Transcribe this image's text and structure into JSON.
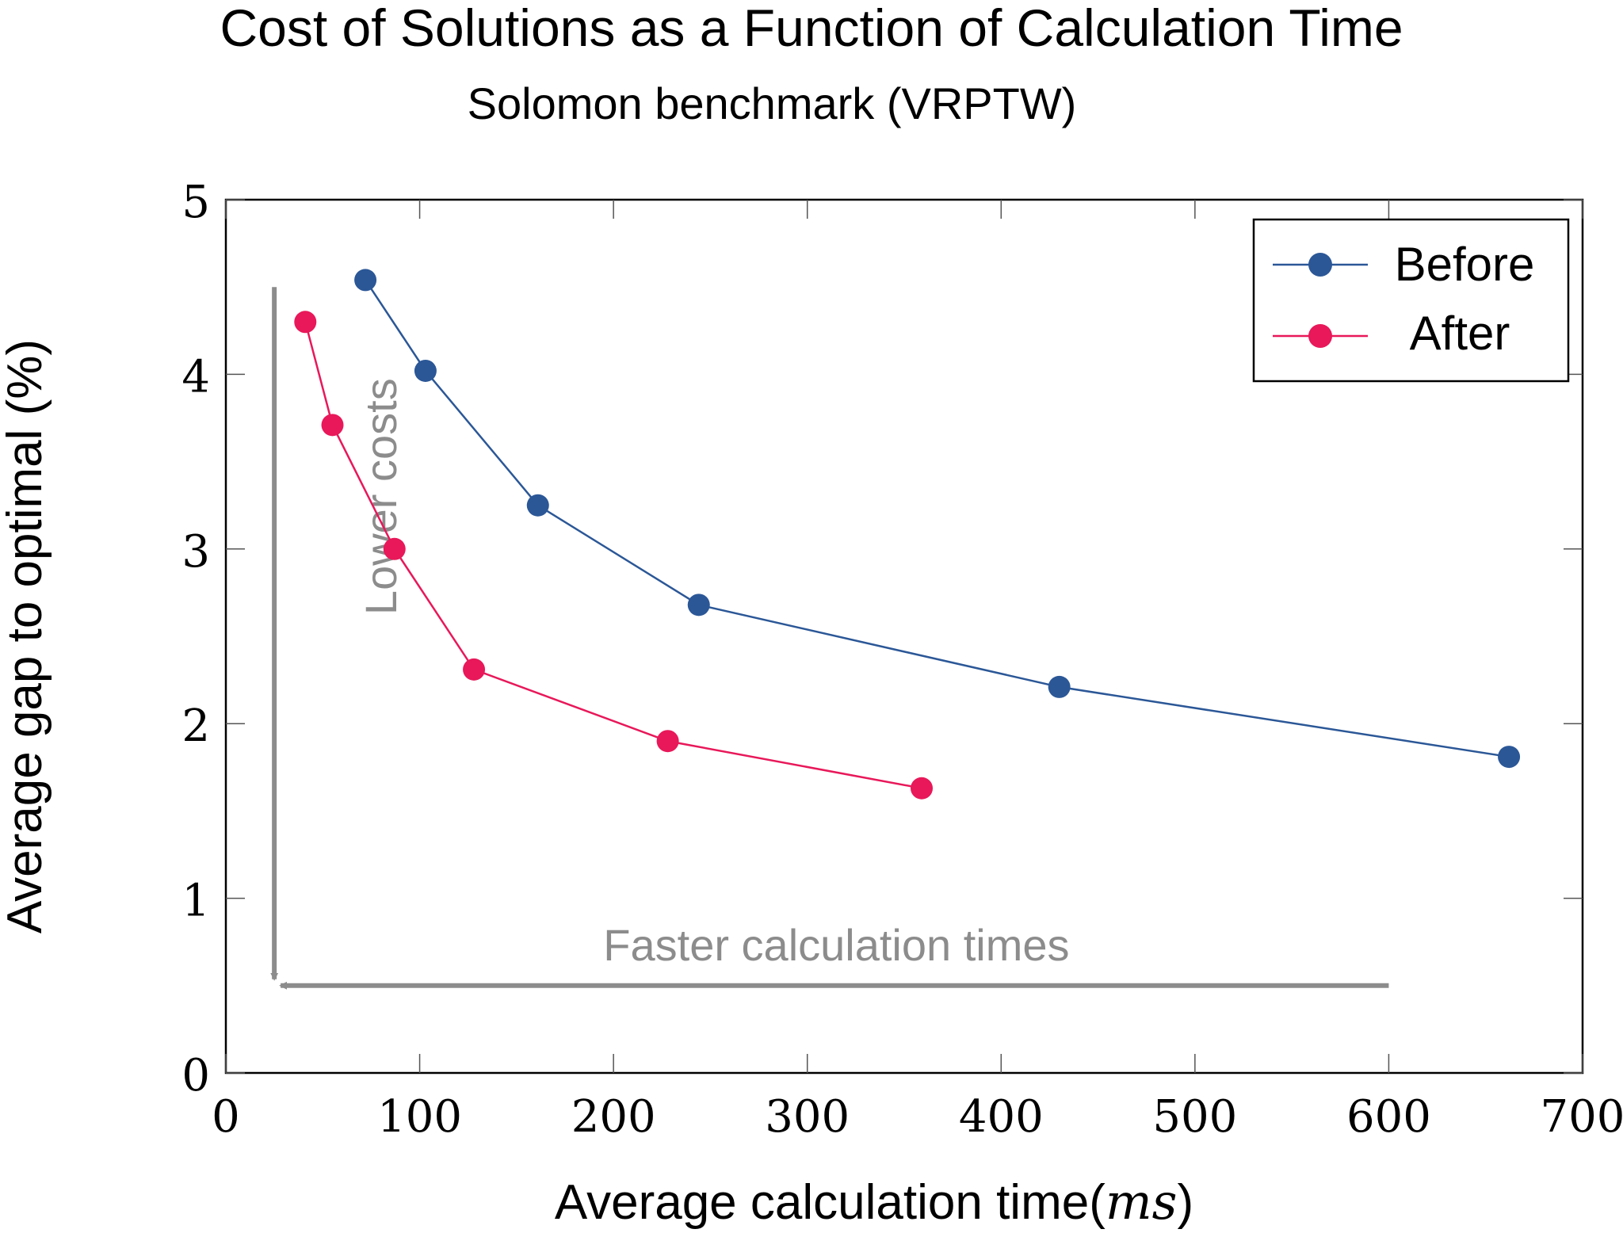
{
  "chart_data": {
    "type": "line",
    "title": "Cost of Solutions as a Function of Calculation Time",
    "subtitle": "Solomon benchmark (VRPTW)",
    "xlabel": "Average calculation time",
    "xlabel_unit": "ms",
    "ylabel": "Average gap to optimal (%)",
    "xlim": [
      0,
      700
    ],
    "ylim": [
      0,
      5
    ],
    "xticks": [
      0,
      100,
      200,
      300,
      400,
      500,
      600,
      700
    ],
    "yticks": [
      0,
      1,
      2,
      3,
      4,
      5
    ],
    "grid": false,
    "legend_position": "top-right",
    "series": [
      {
        "name": "Before",
        "color": "#2b5797",
        "points": [
          [
            72,
            4.54
          ],
          [
            103,
            4.02
          ],
          [
            161,
            3.25
          ],
          [
            244,
            2.68
          ],
          [
            430,
            2.21
          ],
          [
            662,
            1.81
          ]
        ]
      },
      {
        "name": "After",
        "color": "#e8185a",
        "points": [
          [
            41,
            4.3
          ],
          [
            55,
            3.71
          ],
          [
            87,
            3.0
          ],
          [
            128,
            2.31
          ],
          [
            228,
            1.9
          ],
          [
            359,
            1.63
          ]
        ]
      }
    ],
    "annotations": [
      {
        "text": "Lower costs",
        "color": "#8c8c8c",
        "from": [
          25,
          4.5
        ],
        "to": [
          25,
          0.5
        ]
      },
      {
        "text": "Faster calculation times",
        "color": "#8c8c8c",
        "from": [
          600,
          0.5
        ],
        "to": [
          25,
          0.5
        ]
      }
    ]
  }
}
